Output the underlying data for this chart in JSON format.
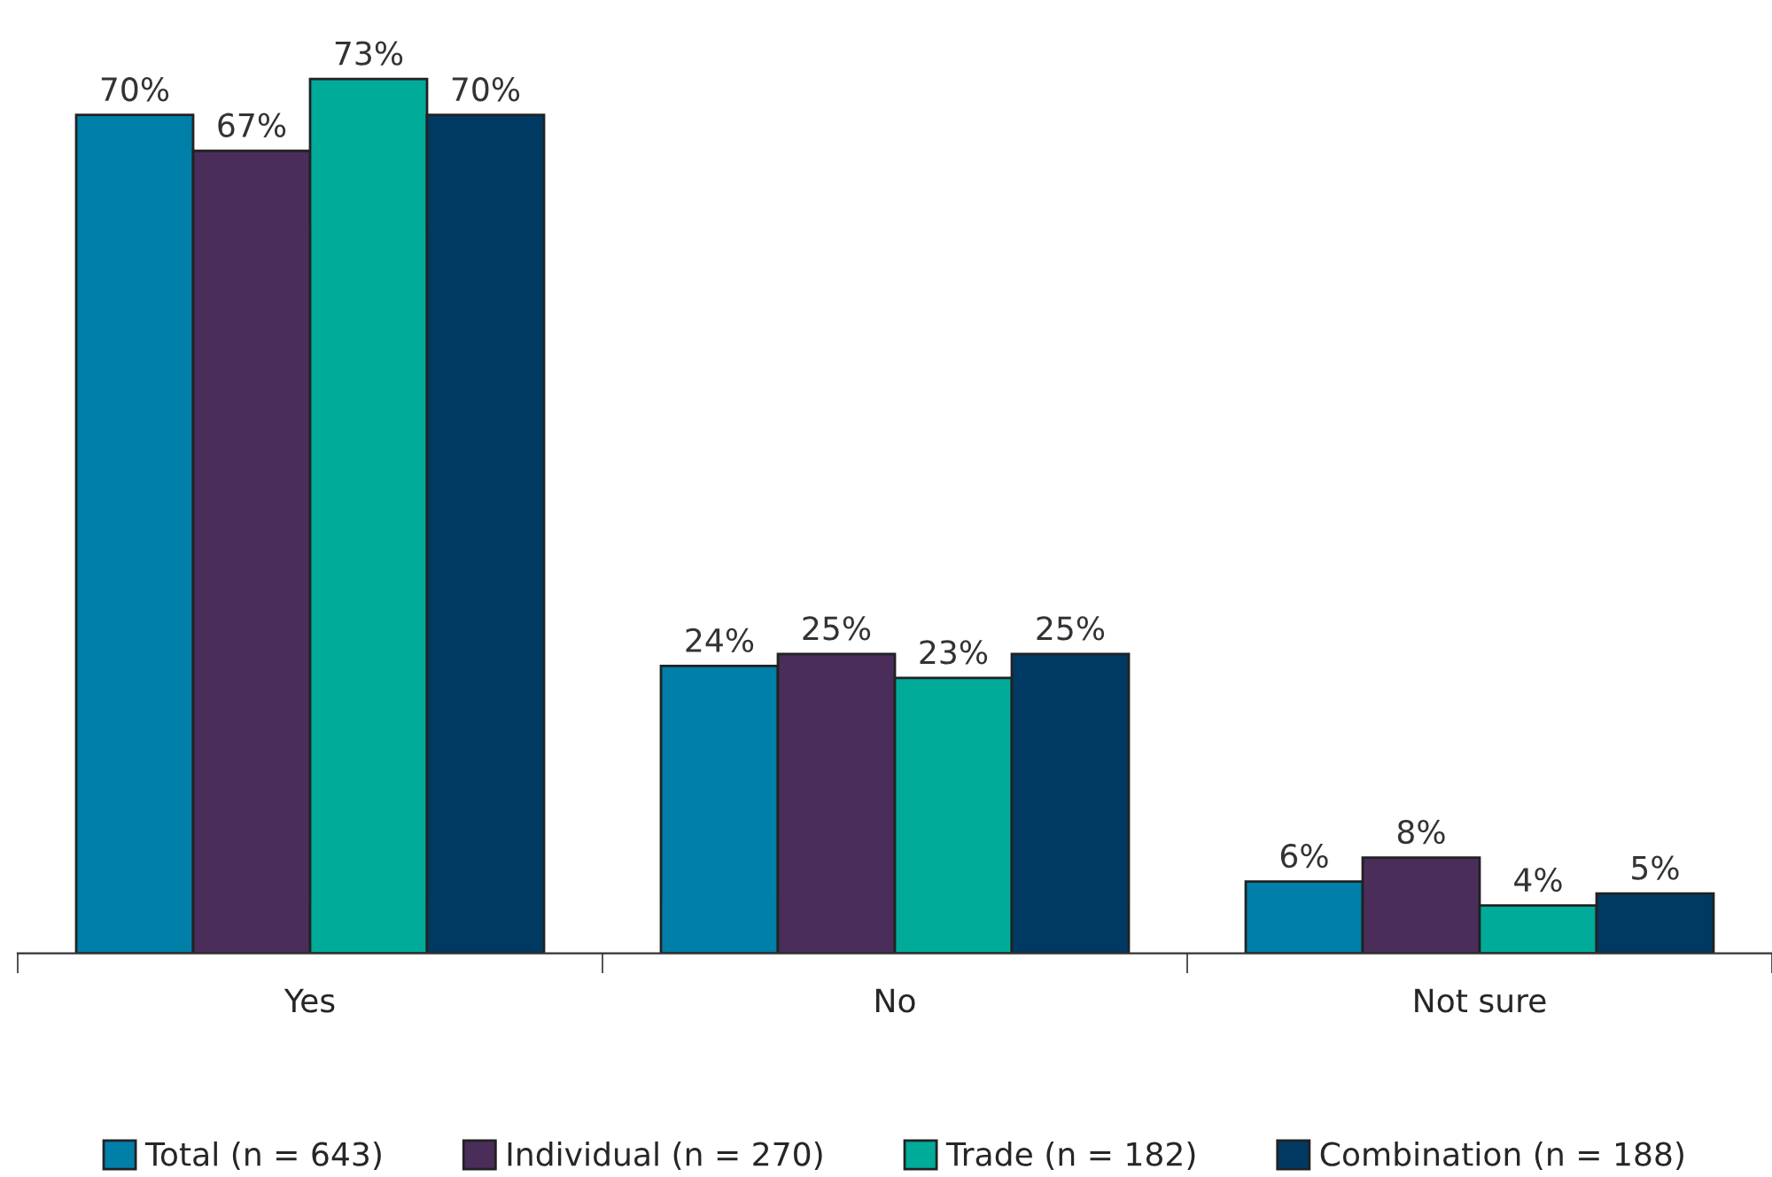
{
  "chart_data": {
    "type": "bar",
    "categories": [
      "Yes",
      "No",
      "Not sure"
    ],
    "series": [
      {
        "name": "Total (n = 643)",
        "color": "#007fa8",
        "values": [
          70,
          24,
          6
        ],
        "value_labels": [
          "70%",
          "24%",
          "6%"
        ]
      },
      {
        "name": "Individual (n = 270)",
        "color": "#4b2d5a",
        "values": [
          67,
          25,
          8
        ],
        "value_labels": [
          "67%",
          "25%",
          "8%"
        ]
      },
      {
        "name": "Trade (n = 182)",
        "color": "#00ab9a",
        "values": [
          73,
          23,
          4
        ],
        "value_labels": [
          "73%",
          "23%",
          "4%"
        ]
      },
      {
        "name": "Combination (n = 188)",
        "color": "#003a63",
        "values": [
          70,
          25,
          5
        ],
        "value_labels": [
          "70%",
          "25%",
          "5%"
        ]
      }
    ],
    "legend": "bottom",
    "grid": false,
    "tick_labels": "x"
  }
}
